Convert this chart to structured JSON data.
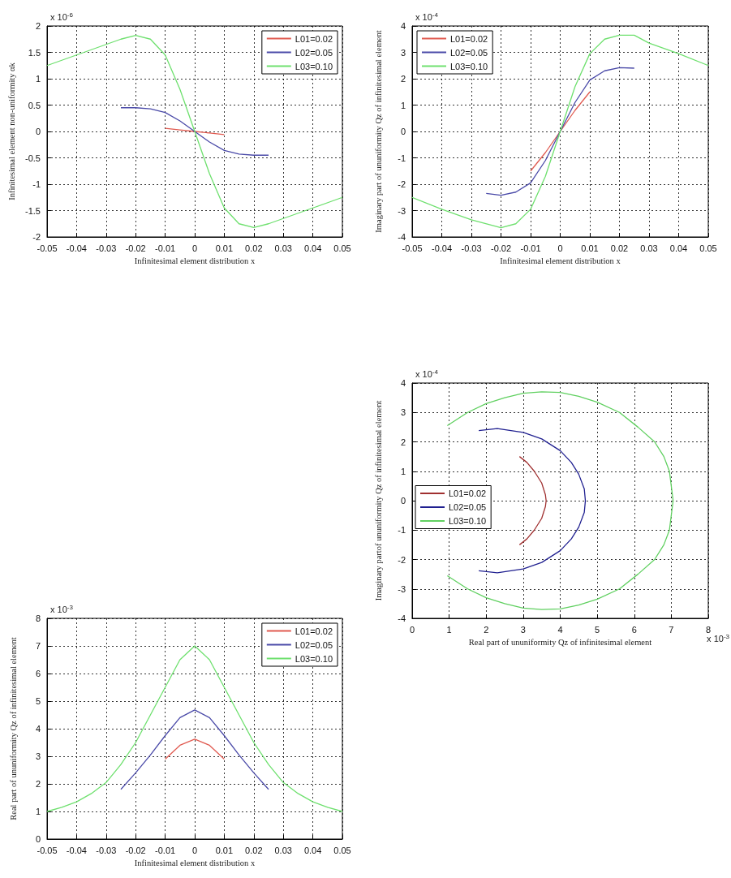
{
  "chart_data": [
    {
      "type": "line",
      "xlabel": "Infinitesimal element distribution x",
      "ylabel": "Infinitesimal element non-uniformity αk",
      "annotations": [
        "x 10$^{-6}$"
      ],
      "xlim": [
        -0.05,
        0.05
      ],
      "xticks": [
        -0.05,
        -0.04,
        -0.03,
        -0.02,
        -0.01,
        0,
        0.01,
        0.02,
        0.03,
        0.04,
        0.05
      ],
      "ylim": [
        -2,
        2
      ],
      "yticks": [
        -2,
        -1.5,
        -1,
        -0.5,
        0,
        0.5,
        1,
        1.5,
        2
      ],
      "grid": true,
      "legend": "top right",
      "marker": "none",
      "line_style": "solid",
      "series": [
        {
          "name": "L01=0.02",
          "color": "#e05a50",
          "x": [
            -0.01,
            -0.005,
            0,
            0.005,
            0.01
          ],
          "values": [
            0.06,
            0.03,
            0,
            -0.03,
            -0.06
          ]
        },
        {
          "name": "L02=0.05",
          "color": "#4a4aa8",
          "x": [
            -0.025,
            -0.02,
            -0.015,
            -0.01,
            -0.005,
            0,
            0.005,
            0.01,
            0.015,
            0.02,
            0.025
          ],
          "values": [
            0.45,
            0.45,
            0.43,
            0.36,
            0.2,
            0,
            -0.2,
            -0.36,
            -0.43,
            -0.45,
            -0.45
          ]
        },
        {
          "name": "L03=0.10",
          "color": "#6ee06e",
          "x": [
            -0.05,
            -0.04,
            -0.03,
            -0.025,
            -0.02,
            -0.015,
            -0.01,
            -0.005,
            0,
            0.005,
            0.01,
            0.015,
            0.02,
            0.025,
            0.03,
            0.04,
            0.05
          ],
          "values": [
            1.25,
            1.45,
            1.65,
            1.75,
            1.82,
            1.75,
            1.45,
            0.8,
            0,
            -0.8,
            -1.45,
            -1.75,
            -1.82,
            -1.75,
            -1.65,
            -1.45,
            -1.25
          ]
        }
      ]
    },
    {
      "type": "line",
      "xlabel": "Infinitesimal element distribution x",
      "ylabel": "Imaginary part of ununiformity Qz of infinitesimal element",
      "annotations": [
        "x 10$^{-4}$"
      ],
      "xlim": [
        -0.05,
        0.05
      ],
      "xticks": [
        -0.05,
        -0.04,
        -0.03,
        -0.02,
        -0.01,
        0,
        0.01,
        0.02,
        0.03,
        0.04,
        0.05
      ],
      "ylim": [
        -4,
        4
      ],
      "yticks": [
        -4,
        -3,
        -2,
        -1,
        0,
        1,
        2,
        3,
        4
      ],
      "grid": true,
      "legend": "top left",
      "marker": "none",
      "line_style": "solid",
      "series": [
        {
          "name": "L01=0.02",
          "color": "#e05a50",
          "x": [
            -0.01,
            -0.005,
            0,
            0.005,
            0.01
          ],
          "values": [
            -1.5,
            -0.8,
            0,
            0.8,
            1.5
          ]
        },
        {
          "name": "L02=0.05",
          "color": "#4a4aa8",
          "x": [
            -0.025,
            -0.02,
            -0.015,
            -0.01,
            -0.005,
            0,
            0.005,
            0.01,
            0.015,
            0.02,
            0.025
          ],
          "values": [
            -2.35,
            -2.42,
            -2.3,
            -1.95,
            -1.1,
            0,
            1.1,
            1.95,
            2.3,
            2.42,
            2.4
          ]
        },
        {
          "name": "L03=0.10",
          "color": "#6ee06e",
          "x": [
            -0.05,
            -0.04,
            -0.03,
            -0.02,
            -0.015,
            -0.01,
            -0.005,
            0,
            0.005,
            0.01,
            0.015,
            0.02,
            0.025,
            0.03,
            0.04,
            0.05
          ],
          "values": [
            -2.5,
            -2.95,
            -3.35,
            -3.65,
            -3.5,
            -2.95,
            -1.7,
            0,
            1.7,
            2.95,
            3.5,
            3.65,
            3.65,
            3.35,
            2.95,
            2.5
          ]
        }
      ]
    },
    {
      "type": "line",
      "xlabel": "Real part of ununiformity Qz of infinitesimal element",
      "ylabel": "Imaginary partof ununiformity Qz of infinitesimal element",
      "annotations": [
        "x 10$^{-4}$",
        "x 10$^{-3}$"
      ],
      "xlim": [
        0,
        8
      ],
      "xticks": [
        0,
        1,
        2,
        3,
        4,
        5,
        6,
        7,
        8
      ],
      "ylim": [
        -4,
        4
      ],
      "yticks": [
        -4,
        -3,
        -2,
        -1,
        0,
        1,
        2,
        3,
        4
      ],
      "grid": true,
      "legend": "left",
      "marker": "none",
      "line_style": "solid",
      "series": [
        {
          "name": "L01=0.02",
          "color": "#a03030",
          "x": [
            2.9,
            3.1,
            3.3,
            3.5,
            3.6,
            3.62,
            3.6,
            3.5,
            3.3,
            3.1,
            2.9
          ],
          "values": [
            1.5,
            1.3,
            1.0,
            0.6,
            0.2,
            0,
            -0.2,
            -0.6,
            -1.0,
            -1.3,
            -1.5
          ]
        },
        {
          "name": "L02=0.05",
          "color": "#202090",
          "x": [
            1.8,
            2.3,
            3,
            3.5,
            4,
            4.3,
            4.5,
            4.65,
            4.68,
            4.65,
            4.5,
            4.3,
            4,
            3.5,
            3,
            2.3,
            1.8
          ],
          "values": [
            2.38,
            2.45,
            2.32,
            2.1,
            1.7,
            1.3,
            0.9,
            0.4,
            0,
            -0.4,
            -0.9,
            -1.3,
            -1.7,
            -2.1,
            -2.32,
            -2.45,
            -2.38
          ]
        },
        {
          "name": "L03=0.10",
          "color": "#60d060",
          "x": [
            0.95,
            1.5,
            2,
            2.5,
            3,
            3.5,
            4,
            4.5,
            5,
            5.6,
            6.1,
            6.55,
            6.8,
            6.95,
            7.05,
            6.95,
            6.8,
            6.55,
            6.1,
            5.6,
            5,
            4.5,
            4,
            3.5,
            3,
            2.5,
            2,
            1.5,
            0.95
          ],
          "values": [
            2.55,
            3.0,
            3.3,
            3.5,
            3.65,
            3.7,
            3.68,
            3.55,
            3.35,
            3.0,
            2.5,
            2.0,
            1.5,
            1.0,
            0,
            -1.0,
            -1.5,
            -2.0,
            -2.5,
            -3.0,
            -3.35,
            -3.55,
            -3.68,
            -3.7,
            -3.65,
            -3.5,
            -3.3,
            -3.0,
            -2.55
          ]
        }
      ]
    },
    {
      "type": "line",
      "xlabel": "Infinitesimal element distribution x",
      "ylabel": "Real part of ununiformity Qz of infinitesimal element",
      "annotations": [
        "x 10$^{-3}$"
      ],
      "xlim": [
        -0.05,
        0.05
      ],
      "xticks": [
        -0.05,
        -0.04,
        -0.03,
        -0.02,
        -0.01,
        0,
        0.01,
        0.02,
        0.03,
        0.04,
        0.05
      ],
      "ylim": [
        0,
        8
      ],
      "yticks": [
        0,
        1,
        2,
        3,
        4,
        5,
        6,
        7,
        8
      ],
      "grid": true,
      "legend": "top right",
      "marker": "none",
      "line_style": "solid",
      "series": [
        {
          "name": "L01=0.02",
          "color": "#e05a50",
          "x": [
            -0.01,
            -0.005,
            0,
            0.005,
            0.01
          ],
          "values": [
            2.9,
            3.4,
            3.62,
            3.4,
            2.9
          ]
        },
        {
          "name": "L02=0.05",
          "color": "#4a4aa8",
          "x": [
            -0.025,
            -0.02,
            -0.015,
            -0.01,
            -0.005,
            0,
            0.005,
            0.01,
            0.015,
            0.02,
            0.025
          ],
          "values": [
            1.8,
            2.4,
            3.05,
            3.75,
            4.4,
            4.68,
            4.4,
            3.75,
            3.05,
            2.4,
            1.8
          ]
        },
        {
          "name": "L03=0.10",
          "color": "#6ee06e",
          "x": [
            -0.05,
            -0.045,
            -0.04,
            -0.035,
            -0.03,
            -0.025,
            -0.02,
            -0.015,
            -0.01,
            -0.005,
            0,
            0.005,
            0.01,
            0.015,
            0.02,
            0.025,
            0.03,
            0.035,
            0.04,
            0.045,
            0.05
          ],
          "values": [
            1,
            1.15,
            1.35,
            1.65,
            2.05,
            2.7,
            3.5,
            4.5,
            5.5,
            6.5,
            7,
            6.5,
            5.5,
            4.5,
            3.5,
            2.7,
            2.05,
            1.65,
            1.35,
            1.15,
            1
          ]
        }
      ]
    }
  ]
}
